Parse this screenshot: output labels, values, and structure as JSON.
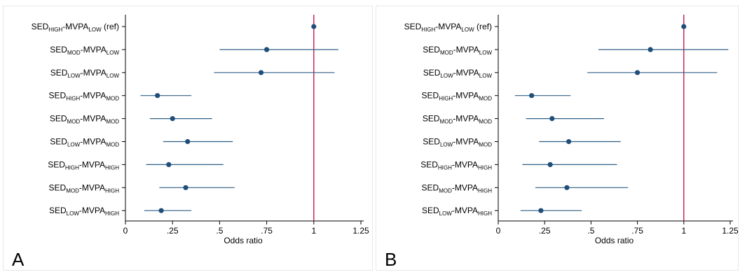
{
  "panels": [
    {
      "letter": "A"
    },
    {
      "letter": "B"
    }
  ],
  "chart_data": [
    {
      "type": "scatter",
      "subtype": "forest-plot",
      "panel": "A",
      "xlabel": "Odds ratio",
      "xlim": [
        0,
        1.25
      ],
      "x_ticks": [
        0,
        0.25,
        0.5,
        0.75,
        1,
        1.25
      ],
      "x_tick_labels": [
        "0",
        ".25",
        ".5",
        ".75",
        "1",
        "1.25"
      ],
      "reference_line": 1,
      "reference_color": "#c8174d",
      "marker_color": "#1f4e79",
      "ci_color": "#2e5f86",
      "rows": [
        {
          "sed": "HIGH",
          "mvpa": "LOW",
          "suffix": " (ref)",
          "estimate": 1.0,
          "lower": 1.0,
          "upper": 1.0
        },
        {
          "sed": "MOD",
          "mvpa": "LOW",
          "suffix": "",
          "estimate": 0.75,
          "lower": 0.5,
          "upper": 1.13
        },
        {
          "sed": "LOW",
          "mvpa": "LOW",
          "suffix": "",
          "estimate": 0.72,
          "lower": 0.47,
          "upper": 1.11
        },
        {
          "sed": "HIGH",
          "mvpa": "MOD",
          "suffix": "",
          "estimate": 0.17,
          "lower": 0.08,
          "upper": 0.35
        },
        {
          "sed": "MOD",
          "mvpa": "MOD",
          "suffix": "",
          "estimate": 0.25,
          "lower": 0.13,
          "upper": 0.46
        },
        {
          "sed": "LOW",
          "mvpa": "MOD",
          "suffix": "",
          "estimate": 0.33,
          "lower": 0.2,
          "upper": 0.57
        },
        {
          "sed": "HIGH",
          "mvpa": "HIGH",
          "suffix": "",
          "estimate": 0.23,
          "lower": 0.11,
          "upper": 0.52
        },
        {
          "sed": "MOD",
          "mvpa": "HIGH",
          "suffix": "",
          "estimate": 0.32,
          "lower": 0.18,
          "upper": 0.58
        },
        {
          "sed": "LOW",
          "mvpa": "HIGH",
          "suffix": "",
          "estimate": 0.19,
          "lower": 0.1,
          "upper": 0.35
        }
      ]
    },
    {
      "type": "scatter",
      "subtype": "forest-plot",
      "panel": "B",
      "xlabel": "Odds ratio",
      "xlim": [
        0,
        1.25
      ],
      "x_ticks": [
        0,
        0.25,
        0.5,
        0.75,
        1,
        1.25
      ],
      "x_tick_labels": [
        "0",
        ".25",
        ".5",
        ".75",
        "1",
        "1.25"
      ],
      "reference_line": 1,
      "reference_color": "#c8174d",
      "marker_color": "#1f4e79",
      "ci_color": "#2e5f86",
      "rows": [
        {
          "sed": "HIGH",
          "mvpa": "LOW",
          "suffix": " (ref)",
          "estimate": 1.0,
          "lower": 1.0,
          "upper": 1.0
        },
        {
          "sed": "MOD",
          "mvpa": "LOW",
          "suffix": "",
          "estimate": 0.82,
          "lower": 0.54,
          "upper": 1.24
        },
        {
          "sed": "LOW",
          "mvpa": "LOW",
          "suffix": "",
          "estimate": 0.75,
          "lower": 0.48,
          "upper": 1.18
        },
        {
          "sed": "HIGH",
          "mvpa": "MOD",
          "suffix": "",
          "estimate": 0.18,
          "lower": 0.09,
          "upper": 0.39
        },
        {
          "sed": "MOD",
          "mvpa": "MOD",
          "suffix": "",
          "estimate": 0.29,
          "lower": 0.15,
          "upper": 0.57
        },
        {
          "sed": "LOW",
          "mvpa": "MOD",
          "suffix": "",
          "estimate": 0.38,
          "lower": 0.22,
          "upper": 0.66
        },
        {
          "sed": "HIGH",
          "mvpa": "HIGH",
          "suffix": "",
          "estimate": 0.28,
          "lower": 0.13,
          "upper": 0.64
        },
        {
          "sed": "MOD",
          "mvpa": "HIGH",
          "suffix": "",
          "estimate": 0.37,
          "lower": 0.2,
          "upper": 0.7
        },
        {
          "sed": "LOW",
          "mvpa": "HIGH",
          "suffix": "",
          "estimate": 0.23,
          "lower": 0.12,
          "upper": 0.45
        }
      ]
    }
  ]
}
